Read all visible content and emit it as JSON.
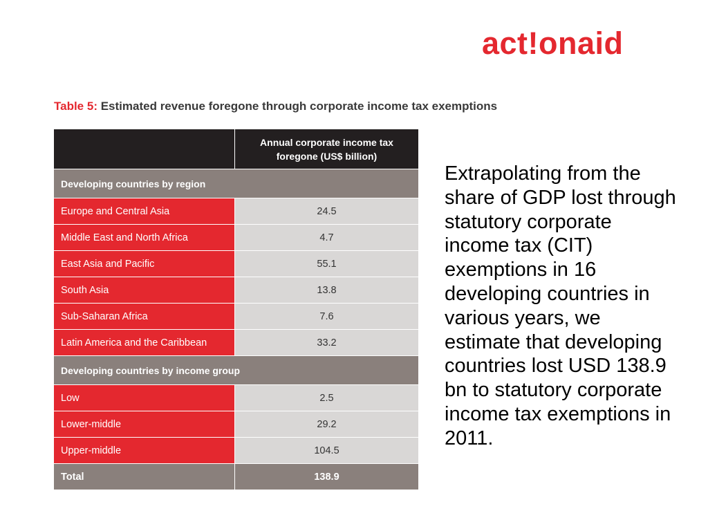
{
  "logo": {
    "text": "act!onaid",
    "color": "#e4282f"
  },
  "table": {
    "title_prefix": "Table 5:",
    "title_text": "Estimated revenue foregone through corporate income tax exemptions",
    "header_value_line1": "Annual corporate income tax",
    "header_value_line2": "foregone (US$ billion)",
    "sections": [
      {
        "label": "Developing countries by region",
        "rows": [
          {
            "label": "Europe and Central Asia",
            "value": "24.5"
          },
          {
            "label": "Middle East and North Africa",
            "value": "4.7"
          },
          {
            "label": "East Asia and Pacific",
            "value": "55.1"
          },
          {
            "label": "South Asia",
            "value": "13.8"
          },
          {
            "label": "Sub-Saharan Africa",
            "value": "7.6"
          },
          {
            "label": "Latin America and the Caribbean",
            "value": "33.2"
          }
        ]
      },
      {
        "label": "Developing countries by income group",
        "rows": [
          {
            "label": "Low",
            "value": "2.5"
          },
          {
            "label": "Lower-middle",
            "value": "29.2"
          },
          {
            "label": "Upper-middle",
            "value": "104.5"
          }
        ]
      }
    ],
    "total": {
      "label": "Total",
      "value": "138.9"
    }
  },
  "summary_text": "Extrapolating from the share of GDP lost through statutory corporate income tax (CIT) exemptions in 16 developing countries in various years, we estimate that developing countries lost USD 138.9 bn to statutory corporate income tax exemptions in 2011.",
  "colors": {
    "accent_red": "#e4282f",
    "header_dark": "#231f20",
    "section_gray": "#8a807c",
    "value_cell_gray": "#d9d7d6"
  }
}
